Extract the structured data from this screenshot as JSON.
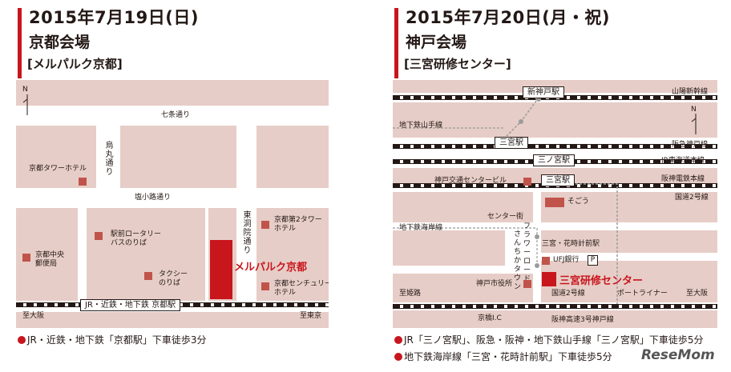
{
  "kyoto": {
    "date": "2015年7月19日(日)",
    "venue": "京都会場",
    "subvenue": "[メルパルク京都]",
    "map": {
      "north": "N",
      "streets": {
        "shichijo": "七条通り",
        "karasuma": "烏丸通り",
        "shiokoji": "塩小路通り",
        "higashinotoin": "東洞院通り"
      },
      "places": {
        "kyoto_tower_hotel": "京都タワーホテル",
        "ekimae_rotary": "駅前ロータリー\nバスのりば",
        "kyoto_central_post": "京都中央\n郵便局",
        "taxi": "タクシー\nのりば",
        "daini_tower_hotel": "京都第2タワー\nホテル",
        "century_hotel": "京都センチュリー\nホテル"
      },
      "venue_label": "メルパルク京都",
      "station": "JR・近鉄・地下鉄 京都駅",
      "to_osaka": "至大阪",
      "to_tokyo": "至東京"
    },
    "notes": [
      "JR・近鉄・地下鉄「京都駅」下車徒歩3分"
    ]
  },
  "kobe": {
    "date": "2015年7月20日(月・祝)",
    "venue": "神戸会場",
    "subvenue": "[三宮研修センター]",
    "map": {
      "north": "N",
      "stations": {
        "shin_kobe": "新神戸駅",
        "sannomiya_subway": "三宮駅",
        "sannomiya_hankyu": "三宮駅",
        "sannomiya_jr": "三ノ宮駅"
      },
      "lines": {
        "sanyo_shinkansen": "山陽新幹線",
        "subway_yamate": "地下鉄山手線",
        "hankyu_kobe": "阪急神戸線",
        "jr_tokaido": "JR東海道本線",
        "hanshin": "阪神電鉄本線",
        "route2_upper": "国道2号線",
        "subway_kaigan": "地下鉄海岸線",
        "route2_lower": "国道2号線",
        "portliner": "ポートライナー",
        "hanshin_expressway": "阪神高速3号神戸線"
      },
      "places": {
        "kobe_kotsu_center": "神戸交通センタービル",
        "sogo": "そごう",
        "center_gai": "センター街",
        "flower_road": "フラワーロード",
        "sanchika_town": "さんちかタウン",
        "hanadokei_station": "三宮・花時計前駅",
        "ufj": "UFJ銀行",
        "parking": "P",
        "city_hall": "神戸市役所",
        "kyobashi": "京橋I.C"
      },
      "venue_label": "三宮研修センター",
      "to_himeji": "至姫路",
      "to_osaka": "至大阪"
    },
    "notes": [
      "JR「三ノ宮駅」、阪急・阪神・地下鉄山手線「三ノ宮駅」下車徒歩5分",
      "地下鉄海岸線「三宮・花時計前駅」下車徒歩5分"
    ]
  },
  "watermark": "ReseMom"
}
